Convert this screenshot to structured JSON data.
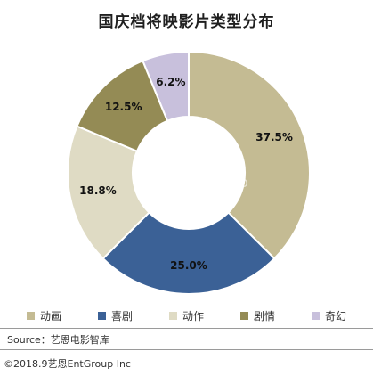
{
  "title": "国庆档将映影片类型分布",
  "watermark": {
    "cn": "艺恩",
    "en": "entgroup"
  },
  "chart_data": {
    "type": "pie",
    "donut": true,
    "title": "国庆档将映影片类型分布",
    "unit": "%",
    "categories": [
      "动画",
      "喜剧",
      "动作",
      "剧情",
      "奇幻"
    ],
    "values": [
      37.5,
      25.0,
      18.8,
      12.5,
      6.2
    ],
    "labels": [
      "37.5%",
      "25.0%",
      "18.8%",
      "12.5%",
      "6.2%"
    ],
    "colors": [
      "#c4bb93",
      "#3b6196",
      "#dfdbc4",
      "#948b55",
      "#c8c0dc"
    ],
    "legend_position": "bottom"
  },
  "legend": [
    {
      "label": "动画",
      "color": "#c4bb93"
    },
    {
      "label": "喜剧",
      "color": "#3b6196"
    },
    {
      "label": "动作",
      "color": "#dfdbc4"
    },
    {
      "label": "剧情",
      "color": "#948b55"
    },
    {
      "label": "奇幻",
      "color": "#c8c0dc"
    }
  ],
  "source": "Source：艺恩电影智库",
  "copyright": "©2018.9艺恩EntGroup Inc"
}
